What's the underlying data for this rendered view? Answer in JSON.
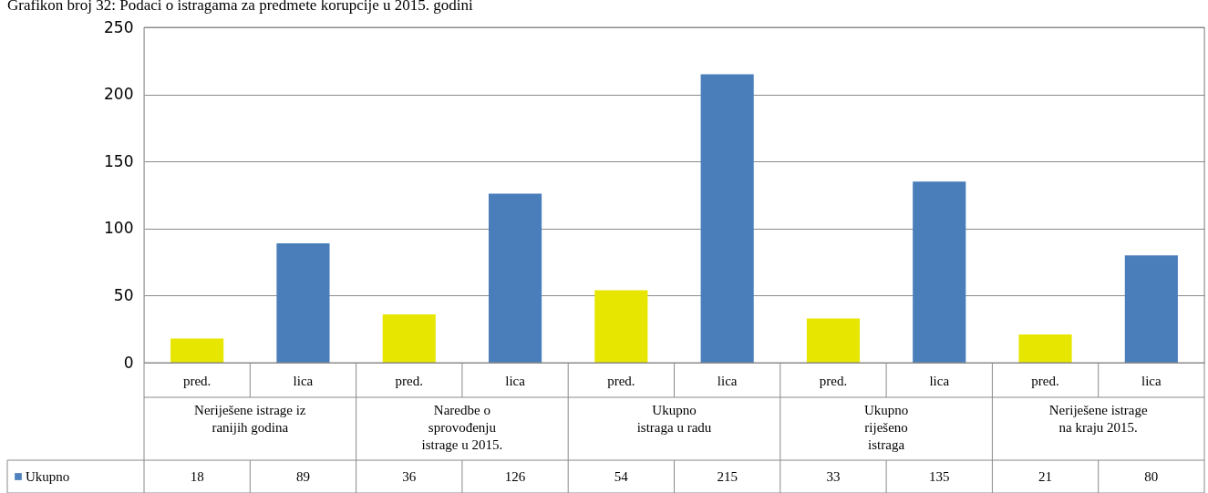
{
  "chart_data": {
    "type": "bar",
    "title": "Grafikon broj 32: Podaci o istragama za predmete korupcije u 2015. godini",
    "categories": [
      "pred.",
      "lica",
      "pred.",
      "lica",
      "pred.",
      "lica",
      "pred.",
      "lica",
      "pred.",
      "lica"
    ],
    "series": [
      {
        "name": "Ukupno",
        "color": "#4f81bd",
        "colors": [
          "#e6e600",
          "#4a7ebb",
          "#e6e600",
          "#4a7ebb",
          "#e6e600",
          "#4a7ebb",
          "#e6e600",
          "#4a7ebb",
          "#e6e600",
          "#4a7ebb"
        ],
        "values": [
          18,
          89,
          36,
          126,
          54,
          215,
          33,
          135,
          21,
          80
        ]
      }
    ],
    "annotations": [
      "Neriješene istrage iz\nranijih godina",
      "Naredbe o\nsprovođenju\nistrage  u 2015.",
      "Ukupno\nistraga u radu",
      "Ukupno\nriješeno\nistraga",
      "Neriješene istrage\nna kraju 2015."
    ],
    "ylim": [
      0,
      250
    ],
    "yticks": [
      0,
      50,
      100,
      150,
      200,
      250
    ],
    "grid": "y",
    "legend": "bottom left",
    "data_labels": true
  }
}
